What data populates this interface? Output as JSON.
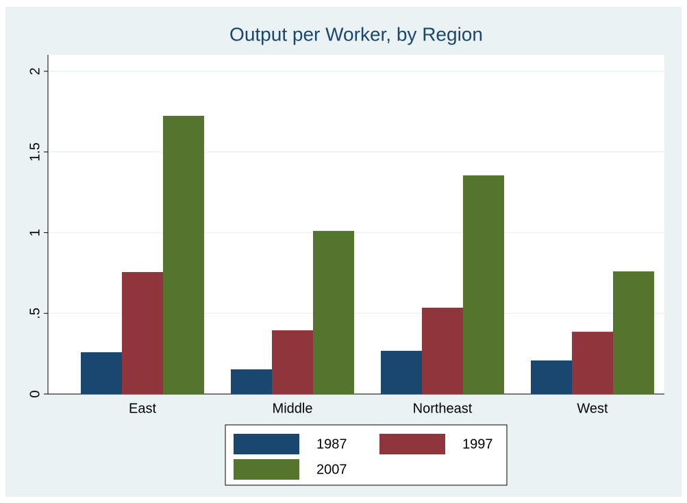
{
  "chart_data": {
    "type": "bar",
    "title": "Output per Worker, by Region",
    "categories": [
      "East",
      "Middle",
      "Northeast",
      "West"
    ],
    "series": [
      {
        "name": "1987",
        "color": "#1a476f",
        "values": [
          0.259,
          0.153,
          0.268,
          0.208
        ]
      },
      {
        "name": "1997",
        "color": "#90353b",
        "values": [
          0.756,
          0.395,
          0.535,
          0.386
        ]
      },
      {
        "name": "2007",
        "color": "#55752f",
        "values": [
          1.724,
          1.011,
          1.355,
          0.76
        ]
      }
    ],
    "ylim": [
      0,
      2
    ],
    "yticks": [
      0,
      {
        "value": 0.5,
        "label": ".5"
      },
      1,
      {
        "value": 1.5,
        "label": "1.5"
      },
      2
    ],
    "grid": true
  }
}
